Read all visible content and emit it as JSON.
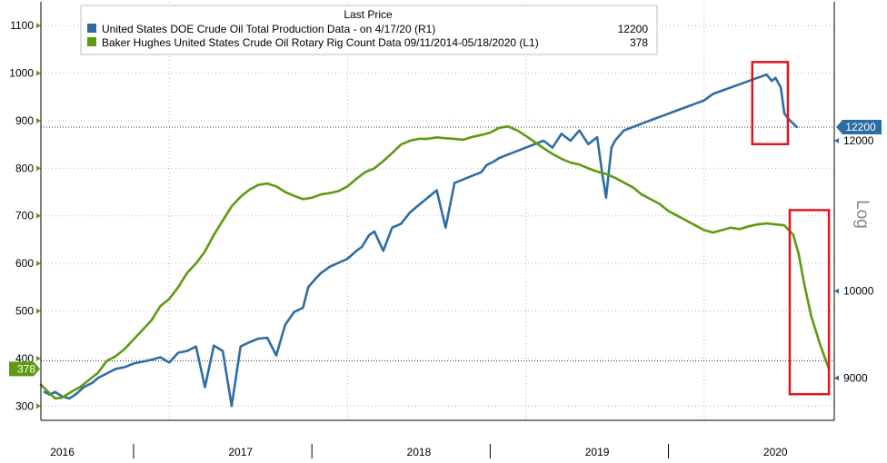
{
  "chart_data": {
    "type": "line",
    "legend": {
      "title": "Last Price",
      "placement": "top-left",
      "entries": [
        {
          "series": "production",
          "label": "United States DOE Crude Oil Total Production Data -  on 4/17/20  (R1)",
          "value": "12200"
        },
        {
          "series": "rigs",
          "label": "Baker Hughes United States Crude Oil Rotary Rig Count Data 09/11/2014-05/18/2020  (L1)",
          "value": "378"
        }
      ]
    },
    "x_range": [
      2015.88,
      2020.33
    ],
    "x_tick_labels": [
      "2016",
      "2017",
      "2018",
      "2019",
      "2020"
    ],
    "x_tick_label_positions": [
      2016.0,
      2017.0,
      2018.0,
      2019.0,
      2020.0
    ],
    "x_dividers": [
      2016.4,
      2017.4,
      2018.4,
      2019.4
    ],
    "left_axis": {
      "ylim": [
        270,
        1150
      ],
      "ticks": [
        300,
        400,
        500,
        600,
        700,
        800,
        900,
        1000,
        1100
      ],
      "tick_labels": [
        "300",
        "400",
        "500",
        "600",
        "700",
        "800",
        "900",
        "1000",
        "1100"
      ],
      "current_value_label": "378",
      "current_value": 378
    },
    "right_axis": {
      "scale": "log",
      "scale_label": "Log",
      "ylim": [
        8550,
        14200
      ],
      "ticks": [
        9000,
        10000,
        12000
      ],
      "tick_labels": [
        "9000",
        "10000",
        "12000"
      ],
      "current_value_label": "12200",
      "current_value": 12200
    },
    "reference_lines": [
      {
        "axis": "right",
        "value": 12200
      },
      {
        "axis": "left",
        "value": 395
      }
    ],
    "grid": true,
    "colors": {
      "production": "#2e6da4",
      "rigs": "#5e9a12",
      "highlight_box": "#e0161e",
      "badge_right": "#2e6da4",
      "badge_left": "#5e9a12"
    },
    "series": [
      {
        "id": "production",
        "axis": "right",
        "x": [
          2015.9,
          2015.93,
          2015.96,
          2016.0,
          2016.04,
          2016.08,
          2016.12,
          2016.17,
          2016.2,
          2016.25,
          2016.3,
          2016.35,
          2016.4,
          2016.45,
          2016.5,
          2016.55,
          2016.6,
          2016.65,
          2016.7,
          2016.75,
          2016.8,
          2016.85,
          2016.9,
          2016.95,
          2017.0,
          2017.05,
          2017.1,
          2017.15,
          2017.2,
          2017.25,
          2017.3,
          2017.35,
          2017.38,
          2017.42,
          2017.45,
          2017.5,
          2017.55,
          2017.6,
          2017.65,
          2017.68,
          2017.72,
          2017.75,
          2017.8,
          2017.85,
          2017.9,
          2017.95,
          2018.0,
          2018.05,
          2018.1,
          2018.15,
          2018.2,
          2018.25,
          2018.3,
          2018.35,
          2018.38,
          2018.42,
          2018.45,
          2018.5,
          2018.55,
          2018.6,
          2018.65,
          2018.7,
          2018.75,
          2018.8,
          2018.85,
          2018.9,
          2018.95,
          2019.0,
          2019.03,
          2019.05,
          2019.08,
          2019.1,
          2019.15,
          2019.2,
          2019.25,
          2019.3,
          2019.35,
          2019.4,
          2019.45,
          2019.5,
          2019.55,
          2019.6,
          2019.65,
          2019.7,
          2019.75,
          2019.8,
          2019.85,
          2019.9,
          2019.95,
          2019.98,
          2020.0,
          2020.03,
          2020.05,
          2020.08,
          2020.12
        ],
        "values": [
          8850,
          8820,
          8850,
          8800,
          8780,
          8830,
          8900,
          8950,
          9000,
          9050,
          9100,
          9120,
          9160,
          9180,
          9200,
          9230,
          9170,
          9280,
          9300,
          9350,
          8900,
          9360,
          9300,
          8700,
          9350,
          9400,
          9440,
          9450,
          9250,
          9600,
          9750,
          9800,
          10050,
          10150,
          10220,
          10300,
          10350,
          10400,
          10500,
          10550,
          10700,
          10750,
          10500,
          10800,
          10850,
          11000,
          11100,
          11200,
          11300,
          10800,
          11400,
          11450,
          11500,
          11550,
          11650,
          11700,
          11750,
          11800,
          11850,
          11900,
          11950,
          12000,
          11900,
          12100,
          12000,
          12150,
          11950,
          12050,
          11500,
          11200,
          11900,
          12000,
          12150,
          12200,
          12250,
          12300,
          12350,
          12400,
          12450,
          12500,
          12550,
          12600,
          12700,
          12750,
          12800,
          12850,
          12900,
          12950,
          13000,
          12900,
          12950,
          12800,
          12400,
          12300,
          12200
        ]
      },
      {
        "id": "rigs",
        "axis": "left",
        "x": [
          2015.88,
          2015.92,
          2015.96,
          2016.0,
          2016.05,
          2016.1,
          2016.15,
          2016.2,
          2016.25,
          2016.3,
          2016.35,
          2016.4,
          2016.45,
          2016.5,
          2016.55,
          2016.6,
          2016.65,
          2016.7,
          2016.75,
          2016.8,
          2016.85,
          2016.9,
          2016.95,
          2017.0,
          2017.05,
          2017.1,
          2017.15,
          2017.2,
          2017.25,
          2017.3,
          2017.35,
          2017.4,
          2017.45,
          2017.5,
          2017.55,
          2017.6,
          2017.65,
          2017.7,
          2017.75,
          2017.8,
          2017.85,
          2017.9,
          2017.95,
          2018.0,
          2018.05,
          2018.1,
          2018.15,
          2018.2,
          2018.25,
          2018.3,
          2018.35,
          2018.4,
          2018.45,
          2018.5,
          2018.55,
          2018.6,
          2018.65,
          2018.7,
          2018.75,
          2018.8,
          2018.85,
          2018.9,
          2018.95,
          2019.0,
          2019.05,
          2019.1,
          2019.15,
          2019.2,
          2019.25,
          2019.3,
          2019.35,
          2019.4,
          2019.45,
          2019.5,
          2019.55,
          2019.6,
          2019.65,
          2019.7,
          2019.75,
          2019.8,
          2019.85,
          2019.9,
          2019.95,
          2020.0,
          2020.05,
          2020.1,
          2020.13,
          2020.16,
          2020.2,
          2020.25,
          2020.3
        ],
        "values": [
          345,
          330,
          316,
          318,
          330,
          340,
          355,
          370,
          395,
          405,
          420,
          440,
          460,
          480,
          510,
          525,
          550,
          580,
          600,
          625,
          660,
          690,
          720,
          740,
          755,
          765,
          768,
          762,
          750,
          742,
          735,
          738,
          745,
          748,
          752,
          762,
          778,
          792,
          800,
          815,
          832,
          850,
          858,
          862,
          862,
          865,
          863,
          862,
          860,
          866,
          870,
          875,
          885,
          888,
          880,
          868,
          855,
          842,
          830,
          820,
          812,
          808,
          800,
          793,
          788,
          780,
          770,
          760,
          745,
          735,
          725,
          710,
          700,
          690,
          680,
          670,
          665,
          670,
          675,
          672,
          678,
          682,
          684,
          682,
          680,
          660,
          620,
          560,
          490,
          430,
          378
        ]
      }
    ]
  }
}
